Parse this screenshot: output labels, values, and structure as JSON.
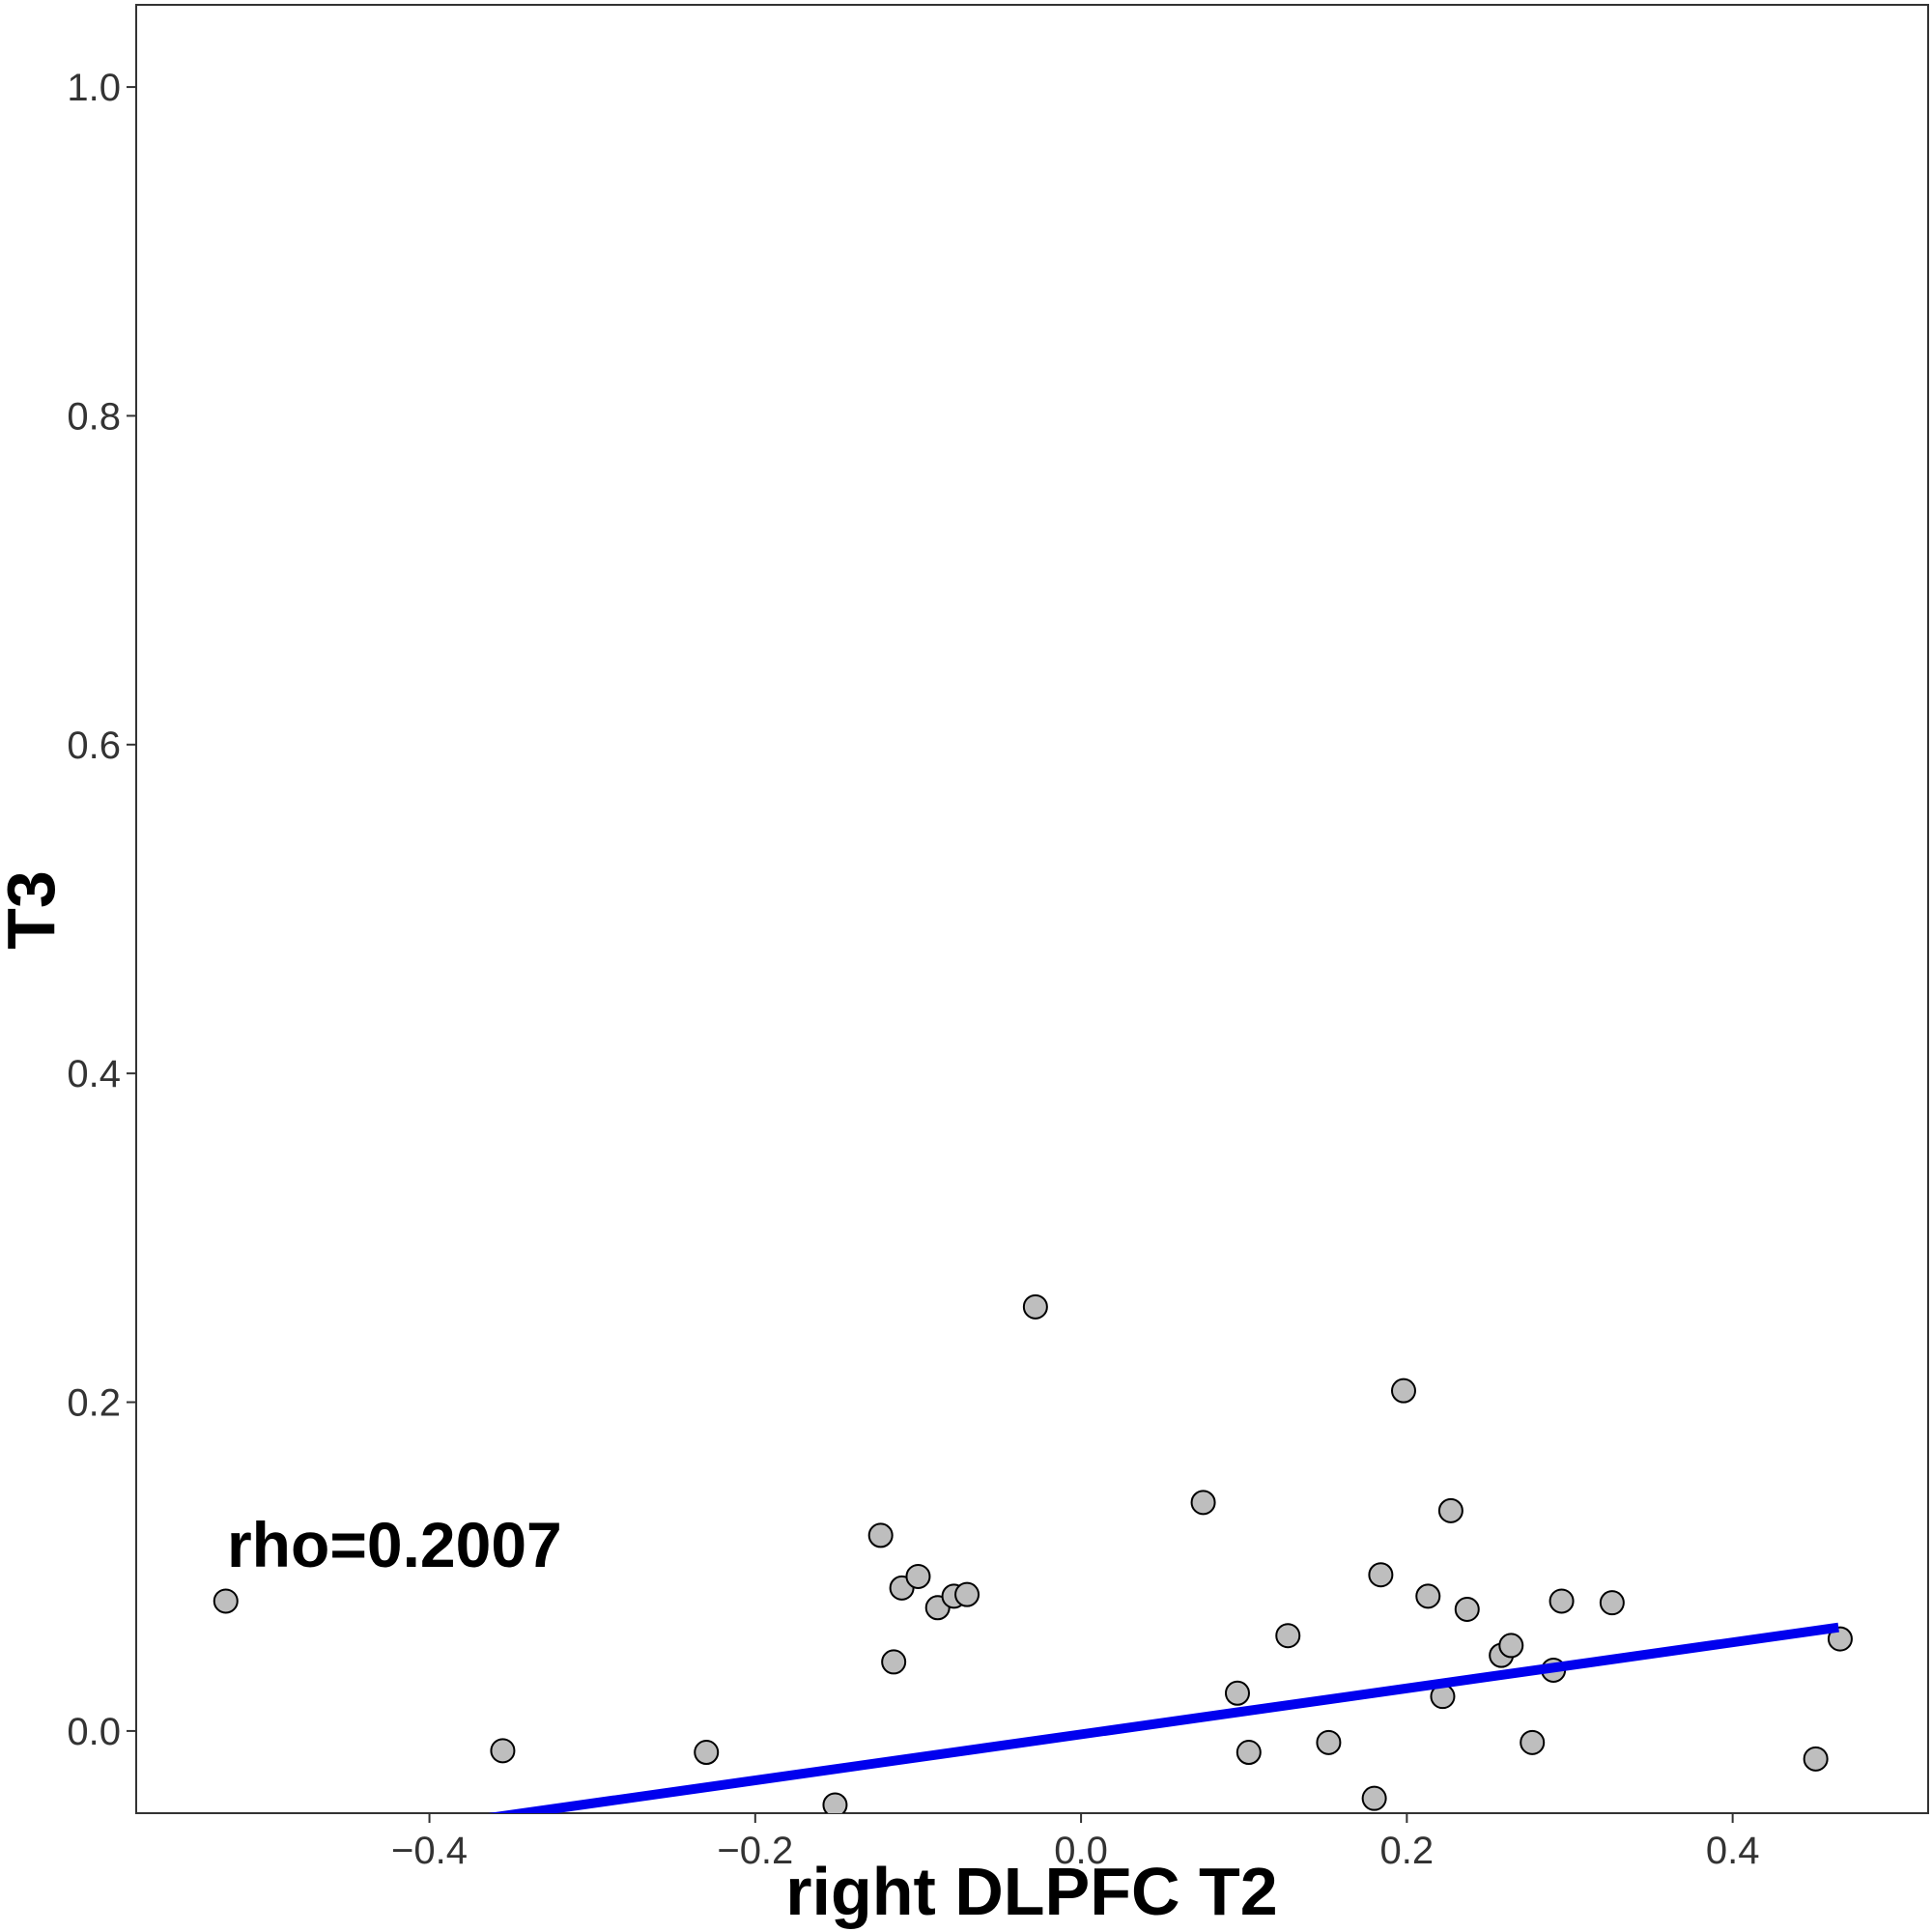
{
  "chart_data": {
    "type": "scatter",
    "xlabel": "right DLPFC T2",
    "ylabel": "T3",
    "xlim": [
      -0.58,
      0.52
    ],
    "ylim": [
      -0.05,
      1.05
    ],
    "x_ticks": [
      -0.4,
      -0.2,
      0.0,
      0.2,
      0.4
    ],
    "x_tick_labels": [
      "−0.4",
      "−0.2",
      "0.0",
      "0.2",
      "0.4"
    ],
    "y_ticks": [
      0.0,
      0.2,
      0.4,
      0.6,
      0.8,
      1.0
    ],
    "y_tick_labels": [
      "0.0",
      "0.2",
      "0.4",
      "0.6",
      "0.8",
      "1.0"
    ],
    "grid": false,
    "annotation": "rho=0.2007",
    "point_fill": "#bebebe",
    "point_stroke": "#000000",
    "fit_line_color": "#0000ee",
    "points": [
      {
        "x": -0.525,
        "y": 0.079
      },
      {
        "x": -0.355,
        "y": -0.012
      },
      {
        "x": -0.23,
        "y": -0.013
      },
      {
        "x": -0.151,
        "y": -0.045
      },
      {
        "x": -0.123,
        "y": 0.119
      },
      {
        "x": -0.115,
        "y": 0.042
      },
      {
        "x": -0.11,
        "y": 0.087
      },
      {
        "x": -0.1,
        "y": 0.094
      },
      {
        "x": -0.088,
        "y": 0.075
      },
      {
        "x": -0.078,
        "y": 0.082
      },
      {
        "x": -0.07,
        "y": 0.083
      },
      {
        "x": -0.028,
        "y": 0.258
      },
      {
        "x": 0.075,
        "y": 0.139
      },
      {
        "x": 0.096,
        "y": 0.023
      },
      {
        "x": 0.103,
        "y": -0.013
      },
      {
        "x": 0.127,
        "y": 0.058
      },
      {
        "x": 0.152,
        "y": -0.007
      },
      {
        "x": 0.18,
        "y": -0.041
      },
      {
        "x": 0.184,
        "y": 0.095
      },
      {
        "x": 0.198,
        "y": 0.207
      },
      {
        "x": 0.213,
        "y": 0.082
      },
      {
        "x": 0.222,
        "y": 0.021
      },
      {
        "x": 0.227,
        "y": 0.134
      },
      {
        "x": 0.237,
        "y": 0.074
      },
      {
        "x": 0.258,
        "y": 0.046
      },
      {
        "x": 0.264,
        "y": 0.052
      },
      {
        "x": 0.277,
        "y": -0.007
      },
      {
        "x": 0.29,
        "y": 0.037
      },
      {
        "x": 0.295,
        "y": 0.079
      },
      {
        "x": 0.326,
        "y": 0.078
      },
      {
        "x": 0.451,
        "y": -0.017
      },
      {
        "x": 0.466,
        "y": 0.056
      }
    ],
    "fit_line": {
      "x": [
        -0.5,
        0.465
      ],
      "y": [
        -0.072,
        0.063
      ]
    }
  }
}
